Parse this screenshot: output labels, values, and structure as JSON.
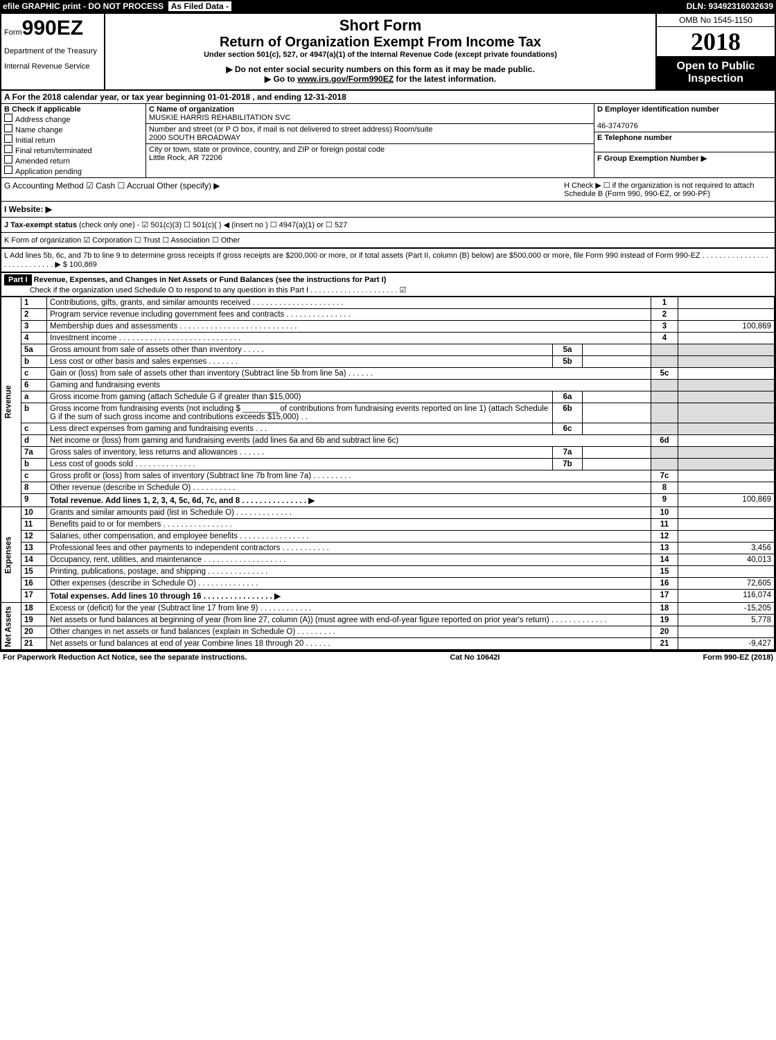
{
  "top": {
    "efile": "efile GRAPHIC print - DO NOT PROCESS",
    "asfiled": "As Filed Data -",
    "dln": "DLN: 93492316032639"
  },
  "hdr": {
    "form_prefix": "Form",
    "form_no": "990EZ",
    "dept": "Department of the Treasury",
    "irs": "Internal Revenue Service",
    "short": "Short Form",
    "title": "Return of Organization Exempt From Income Tax",
    "under": "Under section 501(c), 527, or 4947(a)(1) of the Internal Revenue Code (except private foundations)",
    "warn": "▶ Do not enter social security numbers on this form as it may be made public.",
    "goto": "▶ Go to www.irs.gov/Form990EZ for the latest information.",
    "omb": "OMB No 1545-1150",
    "year": "2018",
    "open": "Open to Public Inspection"
  },
  "A": {
    "text": "A  For the 2018 calendar year, or tax year beginning 01-01-2018             , and ending 12-31-2018"
  },
  "B": {
    "label": "B  Check if applicable",
    "items": [
      "Address change",
      "Name change",
      "Initial return",
      "Final return/terminated",
      "Amended return",
      "Application pending"
    ]
  },
  "C": {
    "label": "C Name of organization",
    "name": "MUSKIE HARRIS REHABILITATION SVC",
    "addr_label": "Number and street (or P O  box, if mail is not delivered to street address)  Room/suite",
    "addr": "2000 SOUTH BROADWAY",
    "city_label": "City or town, state or province, country, and ZIP or foreign postal code",
    "city": "Little Rock, AR  72206"
  },
  "D": {
    "label": "D Employer identification number",
    "ein": "46-3747076",
    "E": "E Telephone number",
    "Eval": "",
    "F": "F Group Exemption Number  ▶"
  },
  "G": {
    "label": "G Accounting Method    ☑ Cash   ☐ Accrual   Other (specify) ▶"
  },
  "H": {
    "text": "H   Check ▶  ☐ if the organization is not required to attach Schedule B (Form 990, 990-EZ, or 990-PF)"
  },
  "I": {
    "label": "I Website: ▶"
  },
  "J": {
    "text": "J Tax-exempt status (check only one) - ☑ 501(c)(3) ☐ 501(c)( ) ◀ (insert no ) ☐ 4947(a)(1) or ☐ 527"
  },
  "K": {
    "text": "K Form of organization    ☑ Corporation  ☐ Trust  ☐ Association  ☐ Other"
  },
  "L": {
    "text": "L Add lines 5b, 6c, and 7b to line 9 to determine gross receipts If gross receipts are $200,000 or more, or if total assets (Part II, column (B) below) are $500,000 or more, file Form 990 instead of Form 990-EZ . . . . . . . . . . . . . . . . . . . . . . . . . . . . ▶ $ 100,869"
  },
  "part1": {
    "hdr": "Part I",
    "title": "Revenue, Expenses, and Changes in Net Assets or Fund Balances (see the instructions for Part I)",
    "check": "Check if the organization used Schedule O to respond to any question in this Part I . . . . . . . . . . . . . . . . . . . . . ☑"
  },
  "lines": [
    {
      "n": "1",
      "d": "Contributions, gifts, grants, and similar amounts received . . . . . . . . . . . . . . . . . . . . .",
      "r": "1",
      "a": ""
    },
    {
      "n": "2",
      "d": "Program service revenue including government fees and contracts . . . . . . . . . . . . . . .",
      "r": "2",
      "a": ""
    },
    {
      "n": "3",
      "d": "Membership dues and assessments . . . . . . . . . . . . . . . . . . . . . . . . . . .",
      "r": "3",
      "a": "100,869"
    },
    {
      "n": "4",
      "d": "Investment income . . . . . . . . . . . . . . . . . . . . . . . . . . . .",
      "r": "4",
      "a": ""
    },
    {
      "n": "5a",
      "d": "Gross amount from sale of assets other than inventory . . . . .",
      "mini": "5a"
    },
    {
      "n": "b",
      "d": "Less cost or other basis and sales expenses . . . . . . .",
      "mini": "5b"
    },
    {
      "n": "c",
      "d": "Gain or (loss) from sale of assets other than inventory (Subtract line 5b from line 5a) . . . . . .",
      "r": "5c",
      "a": ""
    },
    {
      "n": "6",
      "d": "Gaming and fundraising events"
    },
    {
      "n": "a",
      "d": "Gross income from gaming (attach Schedule G if greater than $15,000)",
      "mini": "6a"
    },
    {
      "n": "b",
      "d": "Gross income from fundraising events (not including $ ________ of contributions from fundraising events reported on line 1) (attach Schedule G if the sum of such gross income and contributions exceeds $15,000)   . .",
      "mini": "6b"
    },
    {
      "n": "c",
      "d": "Less  direct expenses from gaming and fundraising events    . . .",
      "mini": "6c"
    },
    {
      "n": "d",
      "d": "Net income or (loss) from gaming and fundraising events (add lines 6a and 6b and subtract line 6c)",
      "r": "6d",
      "a": ""
    },
    {
      "n": "7a",
      "d": "Gross sales of inventory, less returns and allowances . . . . . .",
      "mini": "7a"
    },
    {
      "n": "b",
      "d": "Less cost of goods sold             . . . . . . . . . . . . . .",
      "mini": "7b"
    },
    {
      "n": "c",
      "d": "Gross profit or (loss) from sales of inventory (Subtract line 7b from line 7a) . . . . . . . . .",
      "r": "7c",
      "a": ""
    },
    {
      "n": "8",
      "d": "Other revenue (describe in Schedule O)                    . . . . . . . . . .",
      "r": "8",
      "a": ""
    },
    {
      "n": "9",
      "d": "Total revenue. Add lines 1, 2, 3, 4, 5c, 6d, 7c, and 8 . . . . . . . . . . . . . . .  ▶",
      "r": "9",
      "a": "100,869",
      "bold": true
    },
    {
      "n": "10",
      "d": "Grants and similar amounts paid (list in Schedule O)        . . . . . . . . . . . . .",
      "r": "10",
      "a": ""
    },
    {
      "n": "11",
      "d": "Benefits paid to or for members              . . . . . . . . . . . . . . . .",
      "r": "11",
      "a": ""
    },
    {
      "n": "12",
      "d": "Salaries, other compensation, and employee benefits . . . . . . . . . . . . . . . .",
      "r": "12",
      "a": ""
    },
    {
      "n": "13",
      "d": "Professional fees and other payments to independent contractors . . . . . . . . . . .",
      "r": "13",
      "a": "3,456"
    },
    {
      "n": "14",
      "d": "Occupancy, rent, utilities, and maintenance . . . . . . . . . . . . . . . . . . .",
      "r": "14",
      "a": "40,013"
    },
    {
      "n": "15",
      "d": "Printing, publications, postage, and shipping          . . . . . . . . . . . . . .",
      "r": "15",
      "a": ""
    },
    {
      "n": "16",
      "d": "Other expenses (describe in Schedule O)           . . . . . . . . . . . . . .",
      "r": "16",
      "a": "72,605"
    },
    {
      "n": "17",
      "d": "Total expenses. Add lines 10 through 16       . . . . . . . . . . . . . . . .  ▶",
      "r": "17",
      "a": "116,074",
      "bold": true
    },
    {
      "n": "18",
      "d": "Excess or (deficit) for the year (Subtract line 17 from line 9)     . . . . . . . . . . . .",
      "r": "18",
      "a": "-15,205"
    },
    {
      "n": "19",
      "d": "Net assets or fund balances at beginning of year (from line 27, column (A)) (must agree with end-of-year figure reported on prior year's return)          . . . . . . . . . . . . .",
      "r": "19",
      "a": "5,778"
    },
    {
      "n": "20",
      "d": "Other changes in net assets or fund balances (explain in Schedule O)    . . . . . . . . .",
      "r": "20",
      "a": ""
    },
    {
      "n": "21",
      "d": "Net assets or fund balances at end of year Combine lines 18 through 20       . . . . . .",
      "r": "21",
      "a": "-9,427"
    }
  ],
  "sections": {
    "rev": "Revenue",
    "exp": "Expenses",
    "na": "Net Assets"
  },
  "foot": {
    "left": "For Paperwork Reduction Act Notice, see the separate instructions.",
    "mid": "Cat No 10642I",
    "right": "Form 990-EZ (2018)"
  }
}
